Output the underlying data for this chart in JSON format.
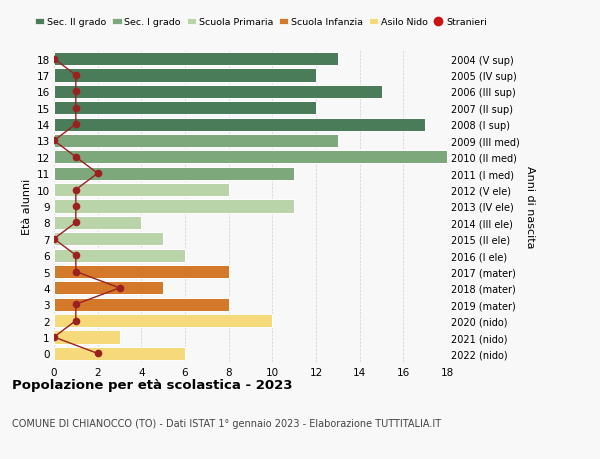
{
  "ages": [
    18,
    17,
    16,
    15,
    14,
    13,
    12,
    11,
    10,
    9,
    8,
    7,
    6,
    5,
    4,
    3,
    2,
    1,
    0
  ],
  "right_labels": [
    "2004 (V sup)",
    "2005 (IV sup)",
    "2006 (III sup)",
    "2007 (II sup)",
    "2008 (I sup)",
    "2009 (III med)",
    "2010 (II med)",
    "2011 (I med)",
    "2012 (V ele)",
    "2013 (IV ele)",
    "2014 (III ele)",
    "2015 (II ele)",
    "2016 (I ele)",
    "2017 (mater)",
    "2018 (mater)",
    "2019 (mater)",
    "2020 (nido)",
    "2021 (nido)",
    "2022 (nido)"
  ],
  "bar_values": [
    13,
    12,
    15,
    12,
    17,
    13,
    18,
    11,
    8,
    11,
    4,
    5,
    6,
    8,
    5,
    8,
    10,
    3,
    6
  ],
  "bar_colors": [
    "#4a7c59",
    "#4a7c59",
    "#4a7c59",
    "#4a7c59",
    "#4a7c59",
    "#7da87b",
    "#7da87b",
    "#7da87b",
    "#b8d4a8",
    "#b8d4a8",
    "#b8d4a8",
    "#b8d4a8",
    "#b8d4a8",
    "#d4782a",
    "#d4782a",
    "#d4782a",
    "#f5d97a",
    "#f5d97a",
    "#f5d97a"
  ],
  "stranieri_values": [
    0,
    1,
    1,
    1,
    1,
    0,
    1,
    2,
    1,
    1,
    1,
    0,
    1,
    1,
    3,
    1,
    1,
    0,
    2
  ],
  "legend_labels": [
    "Sec. II grado",
    "Sec. I grado",
    "Scuola Primaria",
    "Scuola Infanzia",
    "Asilo Nido",
    "Stranieri"
  ],
  "legend_colors": [
    "#4a7c59",
    "#7da87b",
    "#b8d4a8",
    "#d4782a",
    "#f5d97a",
    "#cc1111"
  ],
  "ylabel": "Età alunni",
  "ylabel_right": "Anni di nascita",
  "title": "Popolazione per età scolastica - 2023",
  "subtitle": "COMUNE DI CHIANOCCO (TO) - Dati ISTAT 1° gennaio 2023 - Elaborazione TUTTITALIA.IT",
  "xlim": [
    0,
    18
  ],
  "stranieri_color": "#9b2020",
  "bar_edge_color": "white",
  "bg_color": "#f8f8f8",
  "grid_color": "#d0d0d0"
}
